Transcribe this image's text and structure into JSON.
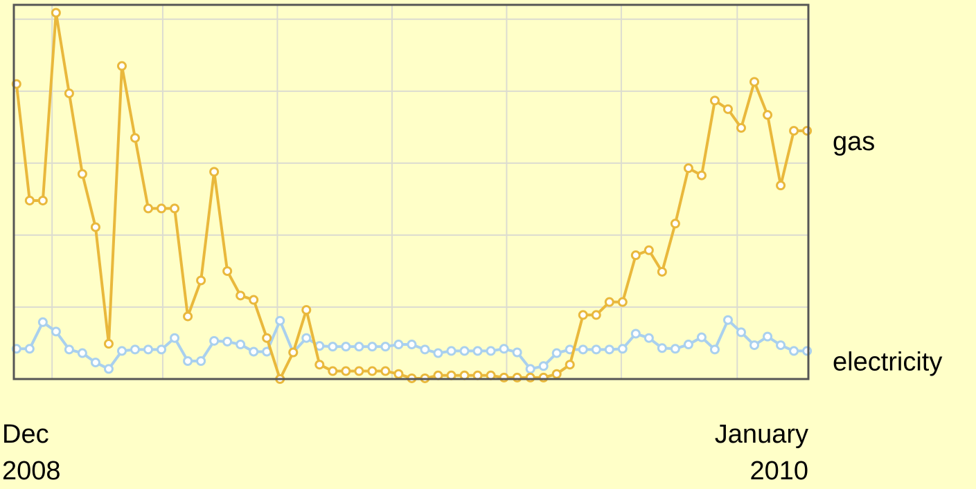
{
  "chart_data": {
    "type": "line",
    "series": [
      {
        "name": "gas",
        "color": "#e9b83c",
        "values": [
          4.1,
          2.48,
          2.48,
          5.09,
          3.97,
          2.85,
          2.11,
          0.49,
          4.35,
          3.35,
          2.37,
          2.37,
          2.37,
          0.87,
          1.37,
          2.88,
          1.5,
          1.16,
          1.1,
          0.57,
          0.0,
          0.37,
          0.96,
          0.2,
          0.11,
          0.11,
          0.11,
          0.11,
          0.11,
          0.07,
          0.01,
          0.01,
          0.05,
          0.05,
          0.05,
          0.05,
          0.05,
          0.02,
          0.02,
          0.02,
          0.02,
          0.07,
          0.2,
          0.89,
          0.89,
          1.07,
          1.07,
          1.72,
          1.79,
          1.49,
          2.16,
          2.93,
          2.83,
          3.87,
          3.75,
          3.49,
          4.13,
          3.67,
          2.69,
          3.45,
          3.45
        ]
      },
      {
        "name": "electricity",
        "color": "#a9d0ee",
        "values": [
          0.42,
          0.42,
          0.79,
          0.66,
          0.41,
          0.36,
          0.23,
          0.14,
          0.39,
          0.41,
          0.41,
          0.41,
          0.57,
          0.25,
          0.25,
          0.53,
          0.52,
          0.48,
          0.38,
          0.38,
          0.81,
          0.37,
          0.57,
          0.46,
          0.45,
          0.45,
          0.45,
          0.45,
          0.45,
          0.48,
          0.48,
          0.41,
          0.36,
          0.39,
          0.39,
          0.39,
          0.39,
          0.42,
          0.37,
          0.14,
          0.18,
          0.36,
          0.41,
          0.41,
          0.41,
          0.41,
          0.42,
          0.63,
          0.57,
          0.43,
          0.42,
          0.48,
          0.58,
          0.41,
          0.82,
          0.65,
          0.47,
          0.59,
          0.47,
          0.39,
          0.39
        ]
      }
    ],
    "xlim": [
      -0.2,
      60.1
    ],
    "xticks": [
      {
        "value": 0,
        "label": [
          "Dec",
          "2008"
        ]
      },
      {
        "value": 60,
        "label": [
          "January",
          "2010"
        ]
      }
    ],
    "xgrid": [
      2.7,
      11.1,
      19.8,
      28.5,
      37.2,
      45.9,
      54.7
    ],
    "ylim": [
      0,
      5.2
    ],
    "yticks": [
      1,
      2,
      3,
      4,
      5
    ],
    "grid": true
  }
}
